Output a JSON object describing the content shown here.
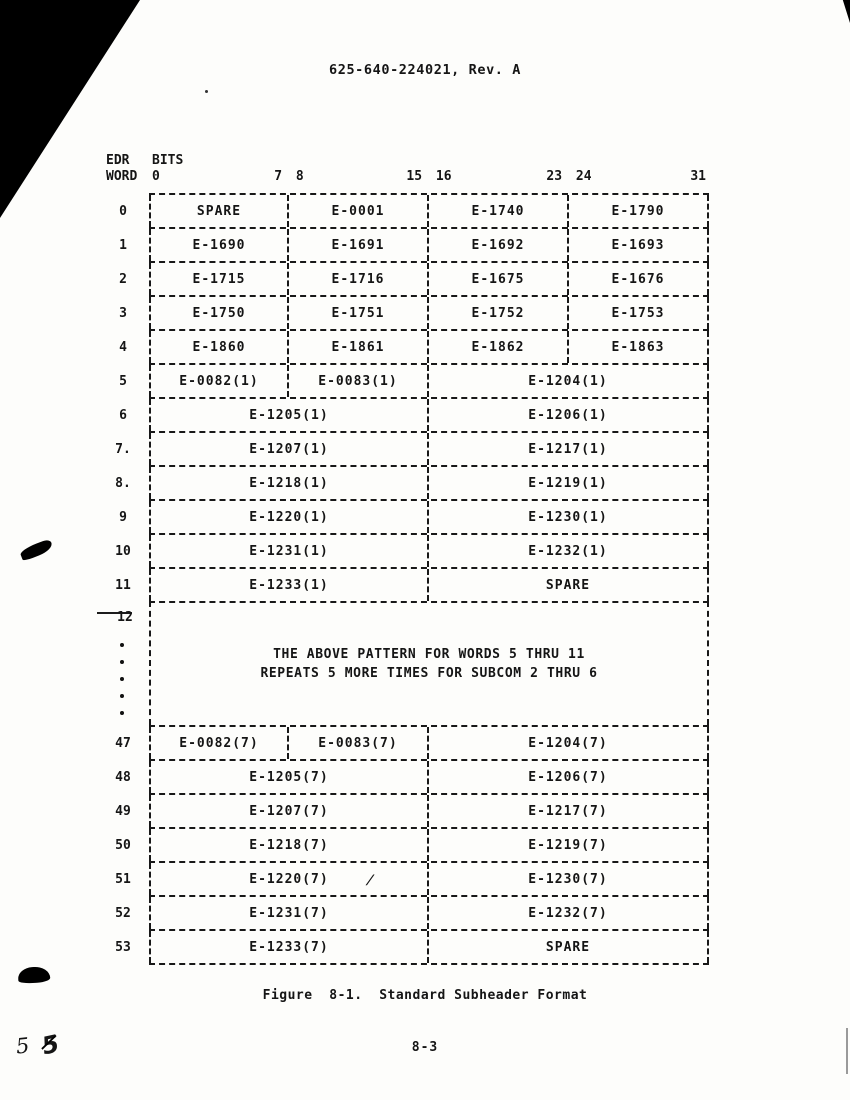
{
  "page": {
    "header_title": "625-640-224021, Rev. A",
    "figure_caption": "Figure  8-1.  Standard Subheader Format",
    "page_number": "8-3",
    "handwritten_marks": [
      "5",
      "5"
    ]
  },
  "table": {
    "corner_header": {
      "line1": "EDR",
      "line2": "WORD",
      "bits_label": "BITS"
    },
    "bit_ticks": [
      "0",
      "7 8",
      "15 16",
      "23 24",
      "31"
    ],
    "rows": [
      {
        "label": "0",
        "cells": [
          {
            "text": "SPARE",
            "span": 1
          },
          {
            "text": "E-0001",
            "span": 1
          },
          {
            "text": "E-1740",
            "span": 1
          },
          {
            "text": "E-1790",
            "span": 1
          }
        ]
      },
      {
        "label": "1",
        "cells": [
          {
            "text": "E-1690",
            "span": 1
          },
          {
            "text": "E-1691",
            "span": 1
          },
          {
            "text": "E-1692",
            "span": 1
          },
          {
            "text": "E-1693",
            "span": 1
          }
        ]
      },
      {
        "label": "2",
        "cells": [
          {
            "text": "E-1715",
            "span": 1
          },
          {
            "text": "E-1716",
            "span": 1
          },
          {
            "text": "E-1675",
            "span": 1
          },
          {
            "text": "E-1676",
            "span": 1
          }
        ]
      },
      {
        "label": "3",
        "cells": [
          {
            "text": "E-1750",
            "span": 1
          },
          {
            "text": "E-1751",
            "span": 1
          },
          {
            "text": "E-1752",
            "span": 1
          },
          {
            "text": "E-1753",
            "span": 1
          }
        ]
      },
      {
        "label": "4",
        "cells": [
          {
            "text": "E-1860",
            "span": 1
          },
          {
            "text": "E-1861",
            "span": 1
          },
          {
            "text": "E-1862",
            "span": 1
          },
          {
            "text": "E-1863",
            "span": 1
          }
        ]
      },
      {
        "label": "5",
        "cells": [
          {
            "text": "E-0082(1)",
            "span": 1
          },
          {
            "text": "E-0083(1)",
            "span": 1
          },
          {
            "text": "E-1204(1)",
            "span": 2
          }
        ]
      },
      {
        "label": "6",
        "cells": [
          {
            "text": "E-1205(1)",
            "span": 2
          },
          {
            "text": "E-1206(1)",
            "span": 2
          }
        ]
      },
      {
        "label": "7.",
        "cells": [
          {
            "text": "E-1207(1)",
            "span": 2
          },
          {
            "text": "E-1217(1)",
            "span": 2
          }
        ]
      },
      {
        "label": "8.",
        "cells": [
          {
            "text": "E-1218(1)",
            "span": 2
          },
          {
            "text": "E-1219(1)",
            "span": 2
          }
        ]
      },
      {
        "label": "9",
        "cells": [
          {
            "text": "E-1220(1)",
            "span": 2
          },
          {
            "text": "E-1230(1)",
            "span": 2
          }
        ]
      },
      {
        "label": "10",
        "cells": [
          {
            "text": "E-1231(1)",
            "span": 2
          },
          {
            "text": "E-1232(1)",
            "span": 2
          }
        ]
      },
      {
        "label": "11",
        "cells": [
          {
            "text": "E-1233(1)",
            "span": 2
          },
          {
            "text": "SPARE",
            "span": 2
          }
        ]
      },
      {
        "label": "12",
        "type": "note",
        "note_lines": [
          "THE ABOVE PATTERN FOR WORDS 5 THRU 11",
          "REPEATS 5 MORE TIMES FOR SUBCOM 2 THRU 6"
        ]
      },
      {
        "label": "47",
        "cells": [
          {
            "text": "E-0082(7)",
            "span": 1
          },
          {
            "text": "E-0083(7)",
            "span": 1
          },
          {
            "text": "E-1204(7)",
            "span": 2
          }
        ]
      },
      {
        "label": "48",
        "cells": [
          {
            "text": "E-1205(7)",
            "span": 2
          },
          {
            "text": "E-1206(7)",
            "span": 2
          }
        ]
      },
      {
        "label": "49",
        "cells": [
          {
            "text": "E-1207(7)",
            "span": 2
          },
          {
            "text": "E-1217(7)",
            "span": 2
          }
        ]
      },
      {
        "label": "50",
        "cells": [
          {
            "text": "E-1218(7)",
            "span": 2
          },
          {
            "text": "E-1219(7)",
            "span": 2
          }
        ]
      },
      {
        "label": "51",
        "cells": [
          {
            "text": "E-1220(7)",
            "span": 2
          },
          {
            "text": "E-1230(7)",
            "span": 2
          }
        ]
      },
      {
        "label": "52",
        "cells": [
          {
            "text": "E-1231(7)",
            "span": 2
          },
          {
            "text": "E-1232(7)",
            "span": 2
          }
        ]
      },
      {
        "label": "53",
        "cells": [
          {
            "text": "E-1233(7)",
            "span": 2
          },
          {
            "text": "SPARE",
            "span": 2
          }
        ]
      }
    ],
    "artifacts": {
      "row_51_stray_slash": "/"
    }
  }
}
